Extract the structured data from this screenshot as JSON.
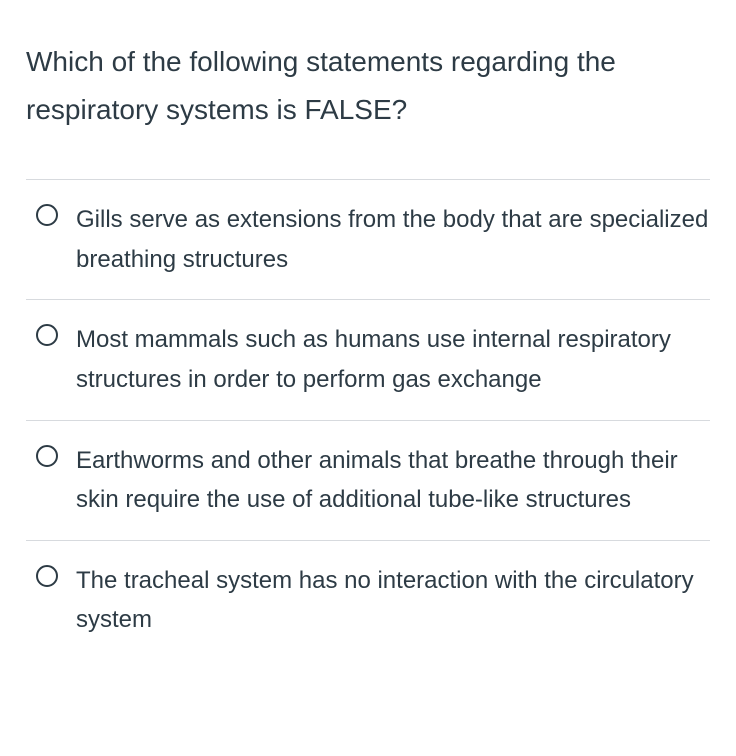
{
  "question": {
    "text": "Which of the following statements regarding the respiratory systems is FALSE?"
  },
  "options": [
    {
      "text": "Gills serve as extensions from the body that are specialized breathing structures"
    },
    {
      "text": "Most mammals such as humans use internal respiratory structures in order to perform gas exchange"
    },
    {
      "text": "Earthworms and other animals that breathe through their skin require the use of additional tube-like structures"
    },
    {
      "text": "The tracheal system has no interaction with the circulatory system"
    }
  ],
  "colors": {
    "text": "#2d3b45",
    "divider": "#d7dade",
    "background": "#ffffff",
    "radio_border": "#2d3b45"
  },
  "typography": {
    "question_fontsize": 28,
    "option_fontsize": 24,
    "font_family": "system-ui"
  }
}
